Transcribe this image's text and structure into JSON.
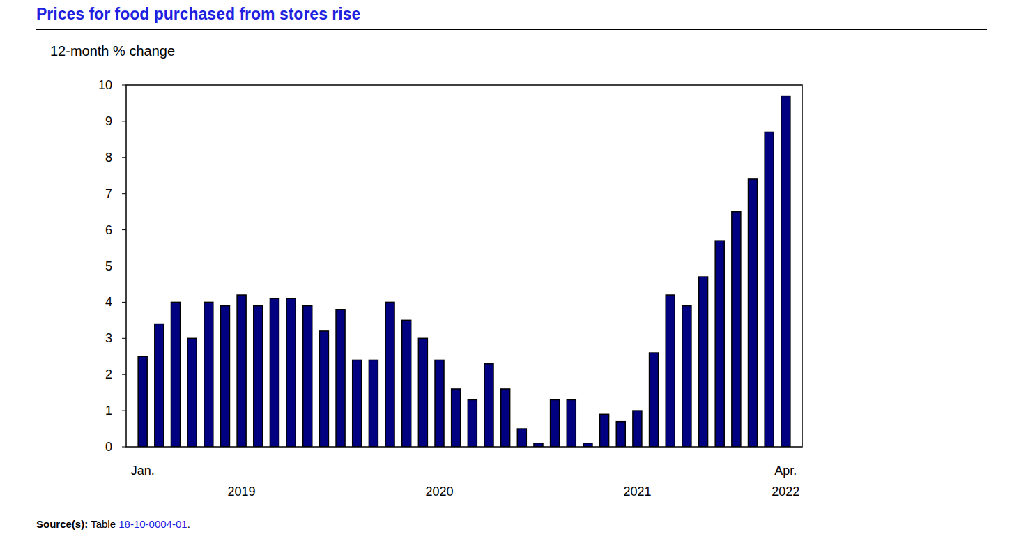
{
  "chart_data": {
    "type": "bar",
    "title": "Prices for food purchased from stores rise",
    "y_label": "12-month % change",
    "categories": [
      "Jan.",
      null,
      null,
      null,
      null,
      null,
      null,
      null,
      null,
      null,
      null,
      null,
      null,
      null,
      null,
      null,
      null,
      null,
      null,
      null,
      null,
      null,
      null,
      null,
      null,
      null,
      null,
      null,
      null,
      null,
      null,
      null,
      null,
      null,
      null,
      null,
      null,
      null,
      null,
      "Apr."
    ],
    "groups": [
      {
        "label": "2019",
        "count": 12
      },
      {
        "label": "2020",
        "count": 12
      },
      {
        "label": "2021",
        "count": 12
      },
      {
        "label": "2022",
        "count": 4
      }
    ],
    "values": [
      2.5,
      3.4,
      4.0,
      3.0,
      4.0,
      3.9,
      4.2,
      3.9,
      4.1,
      4.1,
      3.9,
      3.2,
      3.8,
      2.4,
      2.4,
      4.0,
      3.5,
      3.0,
      2.4,
      1.6,
      1.3,
      2.3,
      1.6,
      0.5,
      0.1,
      1.3,
      1.3,
      0.1,
      0.9,
      0.7,
      1.0,
      2.6,
      4.2,
      3.9,
      4.7,
      5.7,
      6.5,
      7.4,
      8.7,
      9.7
    ],
    "color": "#000080",
    "ylim": [
      0,
      10
    ],
    "yticks": [
      0,
      1,
      2,
      3,
      4,
      5,
      6,
      7,
      8,
      9,
      10
    ],
    "grid": false,
    "source": {
      "label": "Source(s):",
      "text": "Table ",
      "link": "18-10-0004-01",
      "end": "."
    }
  }
}
